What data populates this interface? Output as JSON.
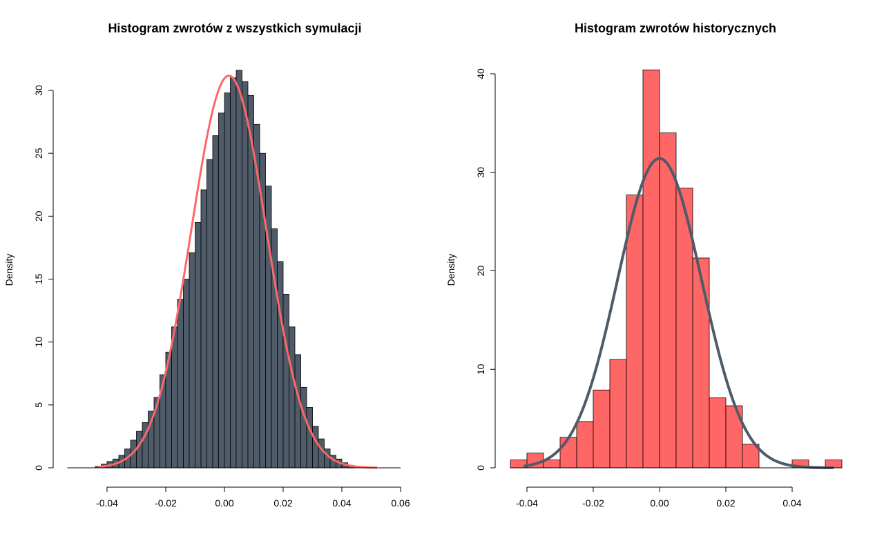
{
  "chart_data": [
    {
      "type": "bar",
      "title": "Histogram zwrotów z wszystkich symulacji",
      "xlabel": "",
      "ylabel": "",
      "xlim": [
        -0.05,
        0.06
      ],
      "ylim": [
        0,
        31.5
      ],
      "x_ticks": [
        "-0.04",
        "-0.02",
        "0.00",
        "0.02",
        "0.04",
        "0.06"
      ],
      "y_ticks": [
        "0",
        "5",
        "10",
        "15",
        "20",
        "25",
        "30"
      ],
      "bar_color": "#4f5b69",
      "curve_color": "#ff6666",
      "bin_width": 0.002,
      "bins_start": -0.044,
      "values": [
        0.1,
        0.3,
        0.5,
        0.7,
        1.0,
        1.5,
        2.2,
        2.9,
        3.6,
        4.5,
        5.6,
        7.4,
        9.2,
        11.2,
        13.4,
        15.0,
        17.1,
        19.5,
        22.1,
        24.5,
        26.4,
        28.2,
        29.8,
        31.0,
        31.6,
        30.7,
        29.6,
        27.3,
        25.0,
        22.4,
        19.0,
        16.4,
        13.8,
        11.2,
        9.0,
        6.4,
        4.8,
        3.3,
        2.3,
        1.5,
        1.0,
        0.7,
        0.4,
        0.2,
        0.1,
        0.05
      ],
      "normal_curve": {
        "mean": 0.0015,
        "sd": 0.0128
      }
    },
    {
      "type": "bar",
      "title": "Histogram zwrotów historycznych",
      "xlabel": "",
      "ylabel": "Density",
      "xlim": [
        -0.045,
        0.055
      ],
      "ylim": [
        0,
        40
      ],
      "x_ticks": [
        "-0.04",
        "-0.02",
        "0.00",
        "0.02",
        "0.04"
      ],
      "y_ticks": [
        "0",
        "10",
        "20",
        "30",
        "40"
      ],
      "bar_color": "#ff6666",
      "curve_color": "#4f5b69",
      "bin_width": 0.005,
      "bins_start": -0.045,
      "values": [
        0.8,
        1.5,
        0.8,
        3.1,
        4.7,
        7.9,
        11.0,
        27.7,
        40.4,
        34.0,
        28.4,
        21.3,
        7.1,
        6.3,
        2.4,
        0.0,
        0.0,
        0.8,
        0.0,
        0.8
      ],
      "normal_curve": {
        "mean": 0.0,
        "sd": 0.0127,
        "from": -0.041,
        "to": 0.0525
      }
    }
  ],
  "left_ylabel": "Density"
}
